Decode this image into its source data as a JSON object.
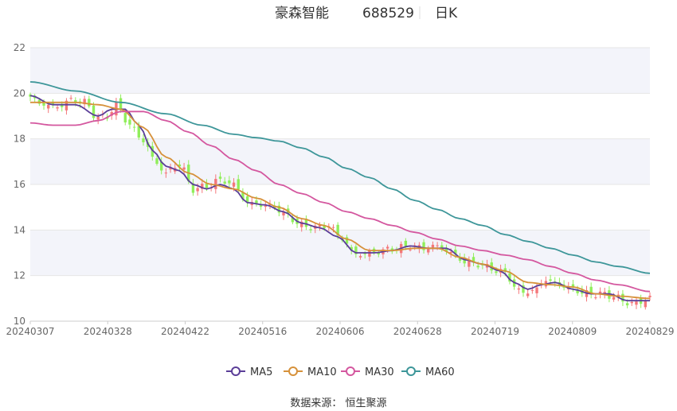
{
  "header": {
    "stock_name": "豪森智能",
    "stock_code": "688529",
    "period": "日K"
  },
  "source": {
    "label": "数据来源：",
    "value": "恒生聚源"
  },
  "colors": {
    "up": "#f4777a",
    "down": "#90ee5a",
    "MA5": "#5b3e98",
    "MA10": "#d6913a",
    "MA30": "#d4579f",
    "MA60": "#3d9699",
    "band": "#f3f4fa",
    "grid": "#e6e6e6"
  },
  "chart_data": {
    "type": "candlestick",
    "title": "豪森智能 688529 日K",
    "xlabel": "",
    "ylabel": "",
    "ylim": [
      10,
      22
    ],
    "yticks": [
      10,
      12,
      14,
      16,
      18,
      20,
      22
    ],
    "x_tick_labels": [
      "20240307",
      "20240328",
      "20240422",
      "20240516",
      "20240606",
      "20240628",
      "20240719",
      "20240809",
      "20240829"
    ],
    "legend_position": "bottom-center",
    "legend": [
      "MA5",
      "MA10",
      "MA30",
      "MA60"
    ],
    "close_anchors": [
      [
        0,
        19.8
      ],
      [
        3,
        19.5
      ],
      [
        6,
        19.4
      ],
      [
        9,
        19.7
      ],
      [
        12,
        19.6
      ],
      [
        15,
        18.9
      ],
      [
        17,
        19.0
      ],
      [
        19,
        19.5
      ],
      [
        22,
        18.6
      ],
      [
        25,
        17.9
      ],
      [
        28,
        16.9
      ],
      [
        30,
        16.5
      ],
      [
        33,
        16.9
      ],
      [
        36,
        15.8
      ],
      [
        39,
        15.9
      ],
      [
        42,
        16.2
      ],
      [
        45,
        16.0
      ],
      [
        48,
        15.2
      ],
      [
        51,
        15.1
      ],
      [
        54,
        15.0
      ],
      [
        57,
        14.6
      ],
      [
        60,
        14.2
      ],
      [
        63,
        14.1
      ],
      [
        66,
        14.2
      ],
      [
        69,
        13.6
      ],
      [
        72,
        12.9
      ],
      [
        75,
        13.0
      ],
      [
        78,
        13.1
      ],
      [
        81,
        13.2
      ],
      [
        84,
        13.3
      ],
      [
        87,
        13.2
      ],
      [
        90,
        13.3
      ],
      [
        93,
        13.0
      ],
      [
        96,
        12.6
      ],
      [
        99,
        12.5
      ],
      [
        102,
        12.3
      ],
      [
        105,
        12.1
      ],
      [
        108,
        11.3
      ],
      [
        111,
        11.3
      ],
      [
        114,
        11.8
      ],
      [
        117,
        11.6
      ],
      [
        120,
        11.4
      ],
      [
        123,
        11.2
      ],
      [
        126,
        11.2
      ],
      [
        129,
        11.1
      ],
      [
        132,
        10.8
      ],
      [
        135,
        10.8
      ],
      [
        137,
        11.1
      ]
    ],
    "ma_series": [
      {
        "name": "MA5",
        "values": [
          [
            0,
            19.9
          ],
          [
            5,
            19.5
          ],
          [
            10,
            19.5
          ],
          [
            15,
            19.0
          ],
          [
            18,
            19.3
          ],
          [
            21,
            19.3
          ],
          [
            24,
            18.6
          ],
          [
            27,
            17.5
          ],
          [
            30,
            16.8
          ],
          [
            33,
            16.6
          ],
          [
            36,
            16.0
          ],
          [
            39,
            15.8
          ],
          [
            42,
            16.0
          ],
          [
            45,
            15.8
          ],
          [
            48,
            15.2
          ],
          [
            52,
            15.1
          ],
          [
            56,
            14.8
          ],
          [
            60,
            14.3
          ],
          [
            64,
            14.1
          ],
          [
            68,
            13.7
          ],
          [
            72,
            13.0
          ],
          [
            76,
            13.0
          ],
          [
            80,
            13.1
          ],
          [
            84,
            13.3
          ],
          [
            88,
            13.2
          ],
          [
            92,
            13.2
          ],
          [
            96,
            12.7
          ],
          [
            100,
            12.5
          ],
          [
            104,
            12.2
          ],
          [
            107,
            11.7
          ],
          [
            110,
            11.4
          ],
          [
            113,
            11.6
          ],
          [
            116,
            11.7
          ],
          [
            120,
            11.4
          ],
          [
            124,
            11.2
          ],
          [
            128,
            11.2
          ],
          [
            132,
            10.9
          ],
          [
            137,
            10.9
          ]
        ]
      },
      {
        "name": "MA10",
        "values": [
          [
            0,
            19.6
          ],
          [
            5,
            19.6
          ],
          [
            10,
            19.6
          ],
          [
            15,
            19.5
          ],
          [
            20,
            19.3
          ],
          [
            25,
            18.5
          ],
          [
            30,
            17.2
          ],
          [
            35,
            16.5
          ],
          [
            40,
            16.0
          ],
          [
            45,
            15.8
          ],
          [
            50,
            15.4
          ],
          [
            55,
            15.0
          ],
          [
            60,
            14.5
          ],
          [
            65,
            14.2
          ],
          [
            70,
            13.6
          ],
          [
            75,
            13.1
          ],
          [
            80,
            13.1
          ],
          [
            85,
            13.2
          ],
          [
            90,
            13.2
          ],
          [
            95,
            12.8
          ],
          [
            100,
            12.5
          ],
          [
            105,
            12.2
          ],
          [
            110,
            11.7
          ],
          [
            115,
            11.6
          ],
          [
            120,
            11.5
          ],
          [
            125,
            11.2
          ],
          [
            130,
            11.1
          ],
          [
            137,
            11.0
          ]
        ]
      },
      {
        "name": "MA30",
        "values": [
          [
            0,
            18.7
          ],
          [
            5,
            18.6
          ],
          [
            10,
            18.6
          ],
          [
            15,
            18.8
          ],
          [
            20,
            19.2
          ],
          [
            25,
            19.2
          ],
          [
            30,
            18.8
          ],
          [
            35,
            18.3
          ],
          [
            40,
            17.7
          ],
          [
            45,
            17.1
          ],
          [
            50,
            16.6
          ],
          [
            55,
            16.0
          ],
          [
            60,
            15.6
          ],
          [
            65,
            15.2
          ],
          [
            70,
            14.8
          ],
          [
            75,
            14.5
          ],
          [
            80,
            14.2
          ],
          [
            85,
            13.9
          ],
          [
            90,
            13.6
          ],
          [
            95,
            13.3
          ],
          [
            100,
            13.1
          ],
          [
            105,
            12.9
          ],
          [
            110,
            12.7
          ],
          [
            115,
            12.4
          ],
          [
            120,
            12.1
          ],
          [
            125,
            11.8
          ],
          [
            130,
            11.6
          ],
          [
            137,
            11.3
          ]
        ]
      },
      {
        "name": "MA60",
        "values": [
          [
            0,
            20.5
          ],
          [
            10,
            20.1
          ],
          [
            20,
            19.6
          ],
          [
            30,
            19.1
          ],
          [
            38,
            18.6
          ],
          [
            45,
            18.2
          ],
          [
            50,
            18.05
          ],
          [
            55,
            17.9
          ],
          [
            60,
            17.6
          ],
          [
            65,
            17.2
          ],
          [
            70,
            16.7
          ],
          [
            75,
            16.3
          ],
          [
            80,
            15.8
          ],
          [
            85,
            15.3
          ],
          [
            90,
            14.9
          ],
          [
            95,
            14.5
          ],
          [
            100,
            14.2
          ],
          [
            105,
            13.8
          ],
          [
            110,
            13.5
          ],
          [
            115,
            13.2
          ],
          [
            120,
            12.9
          ],
          [
            125,
            12.6
          ],
          [
            130,
            12.4
          ],
          [
            137,
            12.1
          ]
        ]
      }
    ]
  }
}
